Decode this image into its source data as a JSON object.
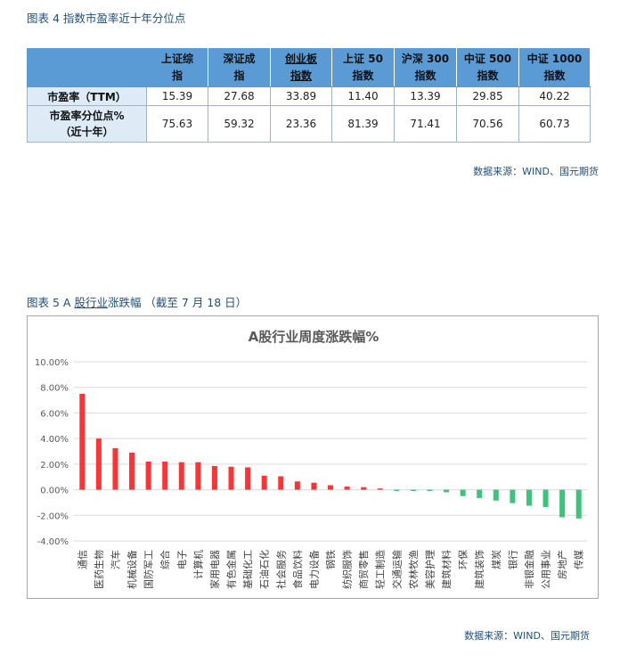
{
  "fig4": {
    "title": "图表 4 指数市盈率近十年分位点",
    "columns": [
      [
        "上证综",
        "指"
      ],
      [
        "深证成",
        "指"
      ],
      [
        "创业板",
        "指数"
      ],
      [
        "上证 50",
        "指数"
      ],
      [
        "沪深 300",
        "指数"
      ],
      [
        "中证 500",
        "指数"
      ],
      [
        "中证 1000",
        "指数"
      ]
    ],
    "rows": [
      {
        "label": [
          "市盈率（TTM）"
        ],
        "values": [
          "15.39",
          "27.68",
          "33.89",
          "11.40",
          "13.39",
          "29.85",
          "40.22"
        ]
      },
      {
        "label": [
          "市盈率分位点%",
          "（近十年）"
        ],
        "values": [
          "75.63",
          "59.32",
          "23.36",
          "81.39",
          "71.41",
          "70.56",
          "60.73"
        ]
      }
    ],
    "source": "数据来源：WIND、国元期货"
  },
  "fig5": {
    "title_prefix": "图表 5 A ",
    "title_underlined": "股行业",
    "title_suffix": "涨跌幅 （截至 7 月 18 日）",
    "source": "数据来源：WIND、国元期货"
  },
  "chart_data": {
    "type": "bar",
    "title": "A股行业周度涨跌幅%",
    "ylim": [
      -4,
      10
    ],
    "ytick_labels": [
      "10.00%",
      "8.00%",
      "6.00%",
      "4.00%",
      "2.00%",
      "0.00%",
      "-2.00%",
      "-4.00%"
    ],
    "grid": true,
    "legend": "none",
    "positive_color": "#ff3333",
    "negative_color": "#3cc47c",
    "categories": [
      "通信",
      "医药生物",
      "汽车",
      "机械设备",
      "国防军工",
      "综合",
      "电子",
      "计算机",
      "家用电器",
      "有色金属",
      "基础化工",
      "石油石化",
      "社会服务",
      "食品饮料",
      "电力设备",
      "钢铁",
      "纺织服饰",
      "商贸零售",
      "轻工制造",
      "交通运输",
      "农林牧渔",
      "美容护理",
      "建筑材料",
      "环保",
      "建筑装饰",
      "煤炭",
      "银行",
      "非银金融",
      "公用事业",
      "房地产",
      "传媒"
    ],
    "values": [
      7.5,
      4.0,
      3.25,
      2.9,
      2.2,
      2.2,
      2.15,
      2.15,
      1.85,
      1.8,
      1.75,
      1.1,
      1.05,
      0.65,
      0.55,
      0.35,
      0.25,
      0.2,
      0.1,
      -0.1,
      -0.1,
      -0.1,
      -0.2,
      -0.5,
      -0.65,
      -0.85,
      -1.05,
      -1.25,
      -1.35,
      -2.15,
      -2.25
    ]
  }
}
